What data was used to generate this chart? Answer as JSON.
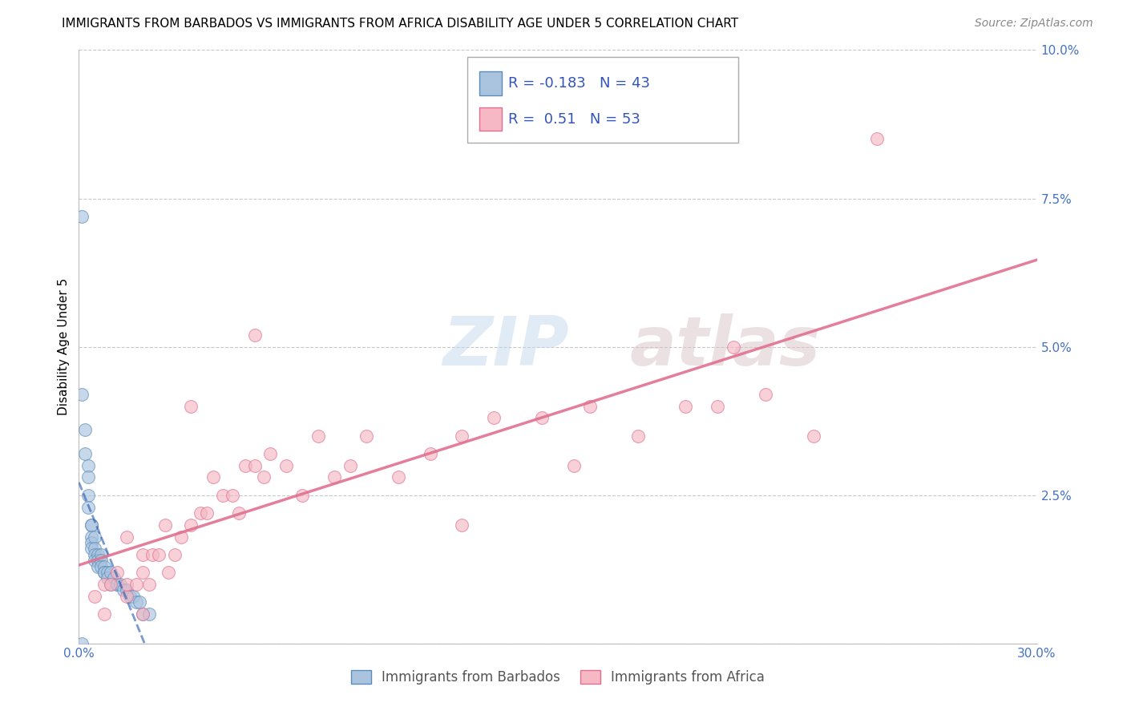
{
  "title": "IMMIGRANTS FROM BARBADOS VS IMMIGRANTS FROM AFRICA DISABILITY AGE UNDER 5 CORRELATION CHART",
  "source": "Source: ZipAtlas.com",
  "ylabel": "Disability Age Under 5",
  "xlim": [
    0.0,
    0.3
  ],
  "ylim": [
    0.0,
    0.1
  ],
  "xticks": [
    0.0,
    0.05,
    0.1,
    0.15,
    0.2,
    0.25,
    0.3
  ],
  "yticks": [
    0.0,
    0.025,
    0.05,
    0.075,
    0.1
  ],
  "xticklabels": [
    "0.0%",
    "",
    "",
    "",
    "",
    "",
    "30.0%"
  ],
  "yticklabels": [
    "",
    "2.5%",
    "5.0%",
    "7.5%",
    "10.0%"
  ],
  "background_color": "#ffffff",
  "grid_color": "#c8c8c8",
  "watermark_zip": "ZIP",
  "watermark_atlas": "atlas",
  "barbados_color": "#aac4e0",
  "barbados_edge_color": "#5b8db8",
  "barbados_line_color": "#2255aa",
  "africa_color": "#f5b8c4",
  "africa_edge_color": "#e07090",
  "africa_line_color": "#e07090",
  "barbados_R": -0.183,
  "barbados_N": 43,
  "africa_R": 0.51,
  "africa_N": 53,
  "legend_label_barbados": "Immigrants from Barbados",
  "legend_label_africa": "Immigrants from Africa",
  "barbados_x": [
    0.001,
    0.001,
    0.002,
    0.002,
    0.003,
    0.003,
    0.003,
    0.003,
    0.004,
    0.004,
    0.004,
    0.004,
    0.004,
    0.005,
    0.005,
    0.005,
    0.005,
    0.006,
    0.006,
    0.006,
    0.007,
    0.007,
    0.007,
    0.008,
    0.008,
    0.008,
    0.009,
    0.009,
    0.01,
    0.01,
    0.011,
    0.012,
    0.012,
    0.013,
    0.014,
    0.015,
    0.016,
    0.017,
    0.018,
    0.019,
    0.02,
    0.022,
    0.001
  ],
  "barbados_y": [
    0.072,
    0.042,
    0.036,
    0.032,
    0.03,
    0.028,
    0.025,
    0.023,
    0.02,
    0.02,
    0.018,
    0.017,
    0.016,
    0.018,
    0.016,
    0.015,
    0.014,
    0.015,
    0.014,
    0.013,
    0.015,
    0.014,
    0.013,
    0.013,
    0.012,
    0.012,
    0.012,
    0.011,
    0.012,
    0.01,
    0.011,
    0.01,
    0.01,
    0.01,
    0.009,
    0.009,
    0.008,
    0.008,
    0.007,
    0.007,
    0.005,
    0.005,
    0.0
  ],
  "africa_x": [
    0.005,
    0.008,
    0.01,
    0.012,
    0.015,
    0.015,
    0.018,
    0.02,
    0.02,
    0.022,
    0.023,
    0.025,
    0.027,
    0.028,
    0.03,
    0.032,
    0.035,
    0.038,
    0.04,
    0.042,
    0.045,
    0.048,
    0.05,
    0.052,
    0.055,
    0.058,
    0.06,
    0.065,
    0.07,
    0.075,
    0.08,
    0.085,
    0.09,
    0.1,
    0.11,
    0.12,
    0.13,
    0.145,
    0.155,
    0.16,
    0.175,
    0.19,
    0.2,
    0.215,
    0.23,
    0.008,
    0.015,
    0.02,
    0.035,
    0.055,
    0.12,
    0.25,
    0.205
  ],
  "africa_y": [
    0.008,
    0.01,
    0.01,
    0.012,
    0.008,
    0.01,
    0.01,
    0.012,
    0.015,
    0.01,
    0.015,
    0.015,
    0.02,
    0.012,
    0.015,
    0.018,
    0.02,
    0.022,
    0.022,
    0.028,
    0.025,
    0.025,
    0.022,
    0.03,
    0.03,
    0.028,
    0.032,
    0.03,
    0.025,
    0.035,
    0.028,
    0.03,
    0.035,
    0.028,
    0.032,
    0.035,
    0.038,
    0.038,
    0.03,
    0.04,
    0.035,
    0.04,
    0.04,
    0.042,
    0.035,
    0.005,
    0.018,
    0.005,
    0.04,
    0.052,
    0.02,
    0.085,
    0.05
  ]
}
